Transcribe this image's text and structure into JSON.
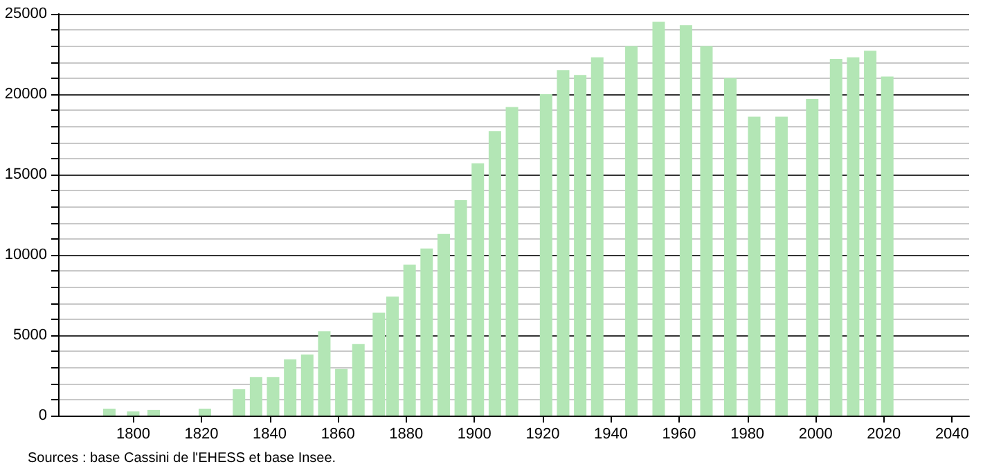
{
  "chart_data": {
    "type": "bar",
    "x": [
      1793,
      1800,
      1806,
      1821,
      1831,
      1836,
      1841,
      1846,
      1851,
      1856,
      1861,
      1866,
      1872,
      1876,
      1881,
      1886,
      1891,
      1896,
      1901,
      1906,
      1911,
      1921,
      1926,
      1931,
      1936,
      1946,
      1954,
      1962,
      1968,
      1975,
      1982,
      1990,
      1999,
      2006,
      2011,
      2016,
      2021
    ],
    "values": [
      430,
      260,
      350,
      430,
      1640,
      2400,
      2400,
      3500,
      3800,
      5250,
      2900,
      4450,
      6400,
      7400,
      9400,
      10400,
      11300,
      13400,
      15700,
      17700,
      19200,
      20000,
      21500,
      21200,
      22300,
      23000,
      24500,
      24300,
      23000,
      21000,
      18600,
      18600,
      19700,
      22200,
      22300,
      22700,
      21100
    ],
    "color": "#b3e6b5",
    "xlim": [
      1778,
      2045
    ],
    "xticks": [
      1800,
      1820,
      1840,
      1860,
      1880,
      1900,
      1920,
      1940,
      1960,
      1980,
      2000,
      2020,
      2040
    ],
    "ylim": [
      0,
      25000
    ],
    "yticks": [
      0,
      {
        "value": 1000,
        "label": null
      },
      {
        "value": 2000,
        "label": null
      },
      {
        "value": 3000,
        "label": null
      },
      {
        "value": 4000,
        "label": null
      },
      5000,
      {
        "value": 6000,
        "label": null
      },
      {
        "value": 7000,
        "label": null
      },
      {
        "value": 8000,
        "label": null
      },
      {
        "value": 9000,
        "label": null
      },
      10000,
      {
        "value": 11000,
        "label": null
      },
      {
        "value": 12000,
        "label": null
      },
      {
        "value": 13000,
        "label": null
      },
      {
        "value": 14000,
        "label": null
      },
      15000,
      {
        "value": 16000,
        "label": null
      },
      {
        "value": 17000,
        "label": null
      },
      {
        "value": 18000,
        "label": null
      },
      {
        "value": 19000,
        "label": null
      },
      20000,
      {
        "value": 21000,
        "label": null
      },
      {
        "value": 22000,
        "label": null
      },
      {
        "value": 23000,
        "label": null
      },
      {
        "value": 24000,
        "label": null
      },
      25000
    ],
    "grid": "y",
    "annotations": [
      "Sources : base Cassini de l'EHESS et base Insee."
    ]
  }
}
